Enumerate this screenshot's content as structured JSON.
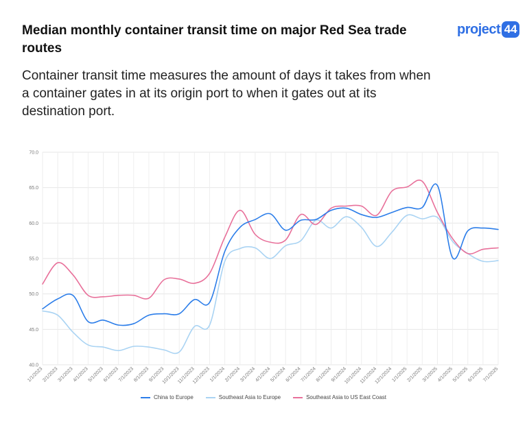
{
  "header": {
    "title": "Median monthly container transit time on major Red Sea trade routes",
    "subtitle": "Container transit time measures the amount of days it takes from when a container gates in at its origin port to when it gates out at its destination port.",
    "logo_text": "project",
    "logo_badge": "44",
    "logo_color": "#2f6fe4"
  },
  "chart_data": {
    "type": "line",
    "title": "Median monthly container transit time on major Red Sea trade routes",
    "xlabel": "",
    "ylabel": "",
    "ylim": [
      40,
      70
    ],
    "yticks": [
      "70.0",
      "65.0",
      "60.0",
      "55.0",
      "50.0",
      "45.0",
      "40.0"
    ],
    "grid": true,
    "legend_position": "bottom-center",
    "x": [
      "1/1/2023",
      "2/1/2023",
      "3/1/2023",
      "4/1/2023",
      "5/1/2023",
      "6/1/2023",
      "7/1/2023",
      "8/1/2023",
      "9/1/2023",
      "10/1/2023",
      "11/1/2023",
      "12/1/2023",
      "1/1/2024",
      "2/1/2024",
      "3/1/2024",
      "4/1/2024",
      "5/1/2024",
      "6/1/2024",
      "7/1/2024",
      "8/1/2024",
      "9/1/2024",
      "10/1/2024",
      "11/1/2024",
      "12/1/2024",
      "1/1/2025",
      "2/1/2025",
      "3/1/2025",
      "4/1/2025",
      "5/1/2025",
      "6/1/2025",
      "7/1/2025"
    ],
    "series": [
      {
        "name": "China to Europe",
        "color": "#2b7de9",
        "values": [
          47.9,
          49.3,
          49.8,
          46.1,
          46.3,
          45.6,
          45.8,
          47.0,
          47.2,
          47.2,
          49.2,
          48.8,
          56.0,
          59.4,
          60.5,
          61.3,
          59.0,
          60.4,
          60.5,
          61.8,
          62.1,
          61.2,
          60.8,
          61.5,
          62.2,
          62.2,
          65.3,
          55.1,
          58.9,
          59.3,
          59.1
        ]
      },
      {
        "name": "Southeast Asia to Europe",
        "color": "#a9d3f3",
        "values": [
          47.6,
          47.0,
          44.6,
          42.8,
          42.5,
          42.0,
          42.6,
          42.5,
          42.1,
          41.8,
          45.4,
          45.6,
          54.6,
          56.4,
          56.5,
          55.0,
          56.8,
          57.5,
          60.4,
          59.3,
          60.9,
          59.4,
          56.7,
          58.7,
          61.1,
          60.6,
          60.8,
          57.4,
          55.7,
          54.6,
          54.7
        ]
      },
      {
        "name": "Southeast Asia to US East Coast",
        "color": "#e8709a",
        "values": [
          51.4,
          54.4,
          52.7,
          49.8,
          49.6,
          49.8,
          49.8,
          49.4,
          52.0,
          52.1,
          51.5,
          52.9,
          58.0,
          61.8,
          58.4,
          57.3,
          57.6,
          61.2,
          59.8,
          62.1,
          62.4,
          62.4,
          61.1,
          64.5,
          65.1,
          65.9,
          61.5,
          57.8,
          55.7,
          56.3,
          56.5
        ]
      }
    ]
  }
}
